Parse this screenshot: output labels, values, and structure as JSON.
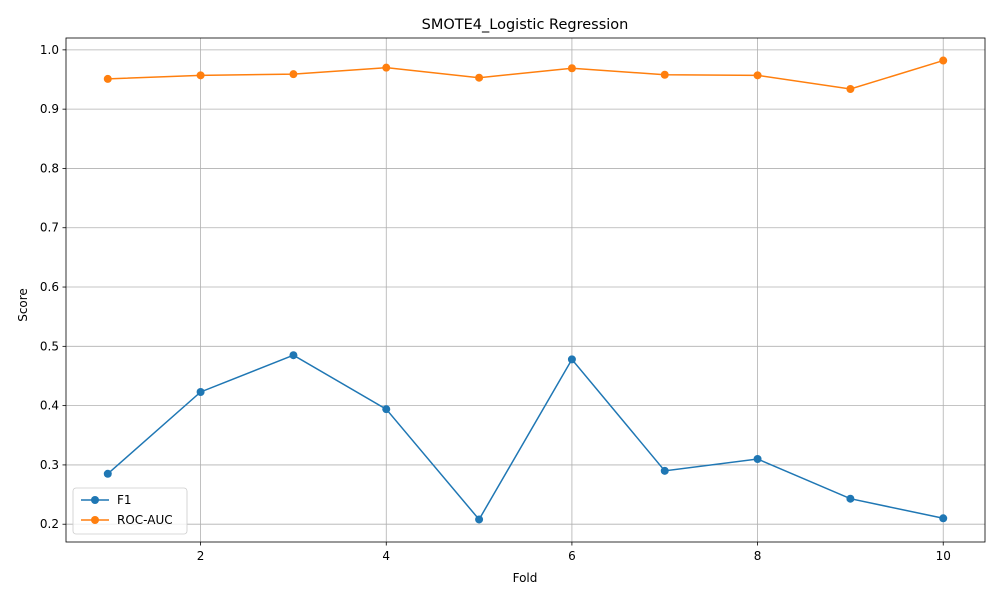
{
  "chart_data": {
    "type": "line",
    "title": "SMOTE4_Logistic Regression",
    "xlabel": "Fold",
    "ylabel": "Score",
    "x": [
      1,
      2,
      3,
      4,
      5,
      6,
      7,
      8,
      9,
      10
    ],
    "xlim": [
      0.55,
      10.45
    ],
    "ylim": [
      0.17,
      1.02
    ],
    "xticks": [
      2,
      4,
      6,
      8,
      10
    ],
    "yticks": [
      0.2,
      0.3,
      0.4,
      0.5,
      0.6,
      0.7,
      0.8,
      0.9,
      1.0
    ],
    "xtick_labels": [
      "2",
      "4",
      "6",
      "8",
      "10"
    ],
    "ytick_labels": [
      "0.2",
      "0.3",
      "0.4",
      "0.5",
      "0.6",
      "0.7",
      "0.8",
      "0.9",
      "1.0"
    ],
    "grid": true,
    "legend_position": "bottom-left",
    "series": [
      {
        "name": "F1",
        "color": "#1f77b4",
        "marker": "circle",
        "values": [
          0.285,
          0.423,
          0.485,
          0.394,
          0.208,
          0.478,
          0.29,
          0.31,
          0.243,
          0.21
        ]
      },
      {
        "name": "ROC-AUC",
        "color": "#ff7f0e",
        "marker": "circle",
        "values": [
          0.951,
          0.957,
          0.959,
          0.97,
          0.953,
          0.969,
          0.958,
          0.957,
          0.934,
          0.982
        ]
      }
    ]
  }
}
